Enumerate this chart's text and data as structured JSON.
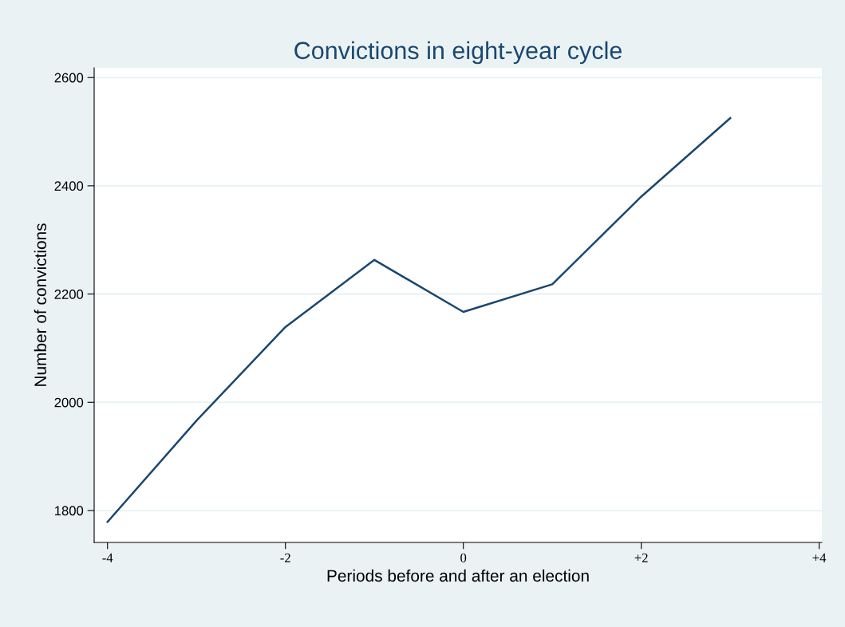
{
  "chart_data": {
    "type": "line",
    "title": "Convictions in eight-year cycle",
    "xlabel": "Periods before and after an election",
    "ylabel": "Number of convictions",
    "x": [
      -4,
      -3,
      -2,
      -1,
      0,
      1,
      2,
      3
    ],
    "series": [
      {
        "color": "#1a476f",
        "values": [
          1779,
          1966,
          2139,
          2263,
          2167,
          2218,
          2380,
          2525
        ]
      }
    ],
    "xlim": [
      -4.15,
      4.03
    ],
    "ylim": [
      1741,
      2618
    ],
    "xticks": [
      -4,
      -2,
      0,
      {
        "value": 2,
        "label": "+2"
      },
      {
        "value": 4,
        "label": "+4"
      }
    ],
    "yticks": [
      1800,
      2000,
      2200,
      2400,
      2600
    ],
    "grid": "y",
    "marker": "none",
    "line_style": "solid"
  }
}
